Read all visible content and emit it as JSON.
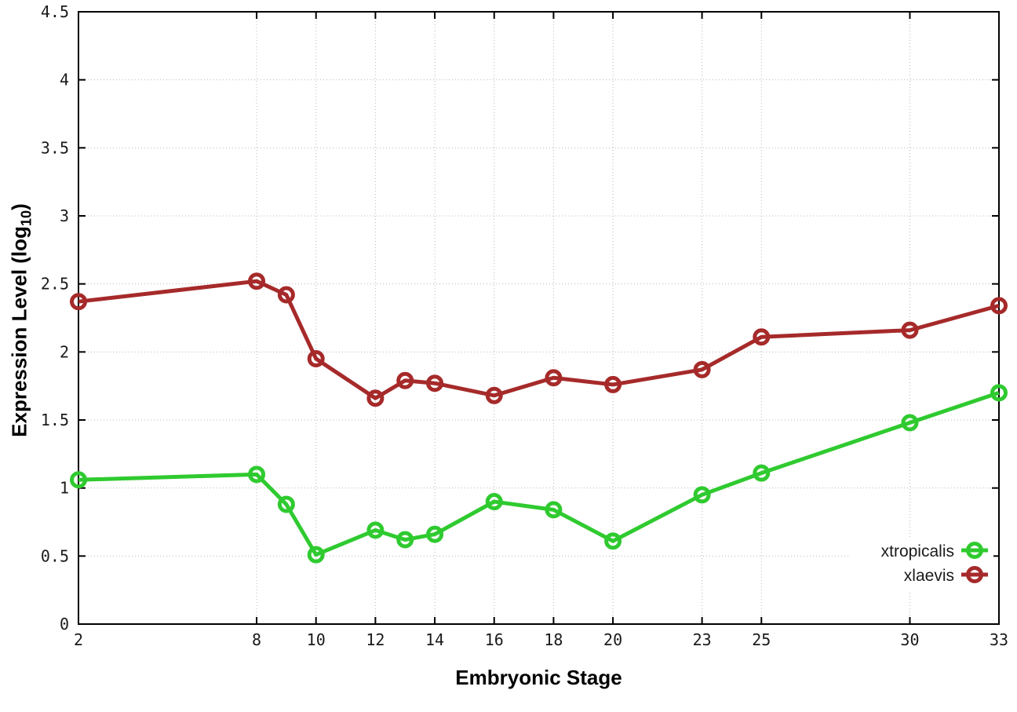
{
  "chart_data": {
    "type": "line",
    "title": "",
    "xlabel": "Embryonic Stage",
    "ylabel": "Expression Level (log10)",
    "ylabel_parts": {
      "pre": "Expression Level (log",
      "sub": "10",
      "post": ")"
    },
    "x": [
      2,
      8,
      9,
      10,
      12,
      13,
      14,
      16,
      18,
      20,
      23,
      25,
      30,
      33
    ],
    "xlim": [
      2,
      33
    ],
    "ylim": [
      0,
      4.5
    ],
    "xticks": [
      2,
      8,
      10,
      12,
      14,
      16,
      18,
      20,
      23,
      25,
      30,
      33
    ],
    "xtick_labels": [
      "2",
      "8",
      "10",
      "12",
      "14",
      "16",
      "18",
      "20",
      "23",
      "25",
      "30",
      "33"
    ],
    "yticks": [
      0,
      0.5,
      1,
      1.5,
      2,
      2.5,
      3,
      3.5,
      4,
      4.5
    ],
    "ytick_labels": [
      "0",
      "0.5",
      "1",
      "1.5",
      "2",
      "2.5",
      "3",
      "3.5",
      "4",
      "4.5"
    ],
    "grid": true,
    "legend_position": "inside-bottom-right",
    "series": [
      {
        "name": "xtropicalis",
        "color": "#2fca2f",
        "values": [
          1.06,
          1.1,
          0.88,
          0.51,
          0.69,
          0.62,
          0.66,
          0.9,
          0.84,
          0.61,
          0.95,
          1.11,
          1.48,
          1.7
        ]
      },
      {
        "name": "xlaevis",
        "color": "#a62a2a",
        "values": [
          2.37,
          2.52,
          2.42,
          1.95,
          1.66,
          1.79,
          1.77,
          1.68,
          1.81,
          1.76,
          1.87,
          2.11,
          2.16,
          2.34
        ]
      }
    ]
  },
  "style_colors": {
    "grid": "#b8b8b8",
    "axis": "#000000",
    "tick_text": "#1a1a1a"
  }
}
